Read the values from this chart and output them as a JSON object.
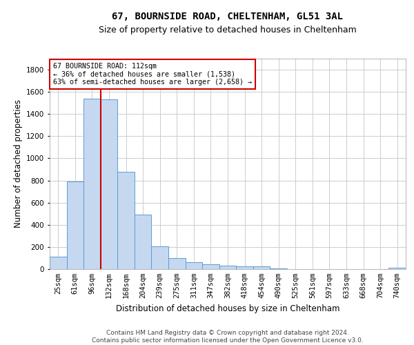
{
  "title1": "67, BOURNSIDE ROAD, CHELTENHAM, GL51 3AL",
  "title2": "Size of property relative to detached houses in Cheltenham",
  "xlabel": "Distribution of detached houses by size in Cheltenham",
  "ylabel": "Number of detached properties",
  "footer1": "Contains HM Land Registry data © Crown copyright and database right 2024.",
  "footer2": "Contains public sector information licensed under the Open Government Licence v3.0.",
  "categories": [
    "25sqm",
    "61sqm",
    "96sqm",
    "132sqm",
    "168sqm",
    "204sqm",
    "239sqm",
    "275sqm",
    "311sqm",
    "347sqm",
    "382sqm",
    "418sqm",
    "454sqm",
    "490sqm",
    "525sqm",
    "561sqm",
    "597sqm",
    "633sqm",
    "668sqm",
    "704sqm",
    "740sqm"
  ],
  "values": [
    110,
    790,
    1538,
    1530,
    880,
    490,
    205,
    100,
    63,
    42,
    30,
    27,
    22,
    5,
    3,
    2,
    2,
    2,
    2,
    2,
    15
  ],
  "bar_color": "#c5d8f0",
  "bar_edge_color": "#5b9bd5",
  "property_bin_index": 2,
  "red_line_label": "67 BOURNSIDE ROAD: 112sqm",
  "annotation_line1": "← 36% of detached houses are smaller (1,538)",
  "annotation_line2": "63% of semi-detached houses are larger (2,658) →",
  "annotation_box_color": "#ffffff",
  "annotation_box_edge": "#cc0000",
  "red_line_color": "#cc0000",
  "ylim": [
    0,
    1900
  ],
  "yticks": [
    0,
    200,
    400,
    600,
    800,
    1000,
    1200,
    1400,
    1600,
    1800
  ],
  "grid_color": "#cccccc",
  "background_color": "#ffffff",
  "title1_fontsize": 10,
  "title2_fontsize": 9,
  "xlabel_fontsize": 8.5,
  "ylabel_fontsize": 8.5,
  "tick_fontsize": 7.5,
  "footer_fontsize": 6.5
}
